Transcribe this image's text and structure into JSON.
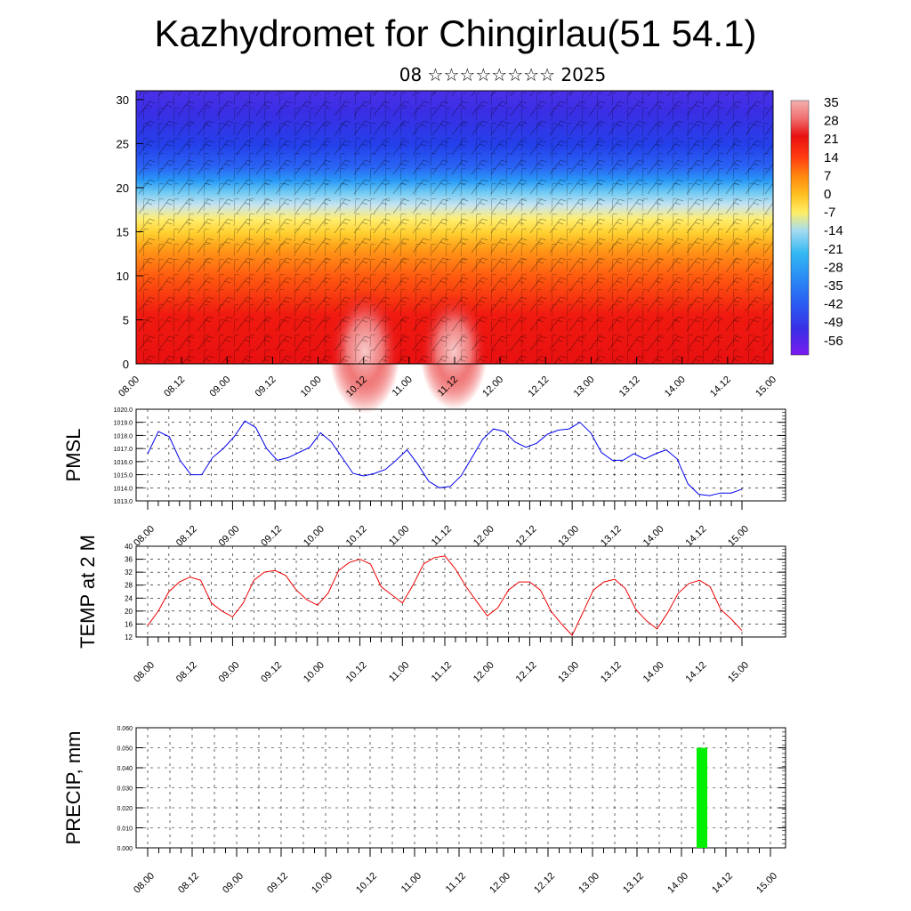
{
  "title": "Kazhydromet for Chingirlau(51 54.1)",
  "subtitle": "08 ☆☆☆☆☆☆☆☆ 2025",
  "colors": {
    "pmsl_line": "#0000ee",
    "temp_line": "#ee0000",
    "precip_bar": "#00ee00",
    "colorbar": [
      "#7a1cf0",
      "#3b2ee6",
      "#2a5cf2",
      "#2a8af5",
      "#33b8f2",
      "#a6dcf0",
      "#ffee66",
      "#ffc020",
      "#ff8a10",
      "#ff3a10",
      "#e81010",
      "#ff3030",
      "#f08080",
      "#f5b0b0"
    ]
  },
  "chart_data": [
    {
      "type": "heatmap",
      "name": "cross-section",
      "x_ticks": [
        "08.00",
        "08.12",
        "09.00",
        "09.12",
        "10.00",
        "10.12",
        "11.00",
        "11.12",
        "12.00",
        "12.12",
        "13.00",
        "13.12",
        "14.00",
        "14.12",
        "15.00"
      ],
      "y_ticks": [
        "0",
        "5",
        "10",
        "15",
        "20",
        "25",
        "30"
      ],
      "ylim": [
        0,
        31
      ],
      "colorbar_labels": [
        "35",
        "28",
        "21",
        "14",
        "7",
        "0",
        "-7",
        "-14",
        "-21",
        "-28",
        "-35",
        "-42",
        "-49",
        "-56"
      ]
    },
    {
      "type": "line",
      "ylabel": "PMSL",
      "ylim": [
        1013.0,
        1020.0
      ],
      "y_ticks": [
        "1013.0",
        "1014.0",
        "1015.0",
        "1016.0",
        "1017.0",
        "1018.0",
        "1019.0",
        "1020.0"
      ],
      "x_ticks": [
        "08.00",
        "08.12",
        "09.00",
        "09.12",
        "10.00",
        "10.12",
        "11.00",
        "11.12",
        "12.00",
        "12.12",
        "13.00",
        "13.12",
        "14.00",
        "14.12",
        "15.00"
      ],
      "values": [
        1016.6,
        1018.3,
        1017.9,
        1016.1,
        1015.0,
        1015.0,
        1016.3,
        1017.0,
        1017.9,
        1019.1,
        1018.6,
        1017.0,
        1016.1,
        1016.3,
        1016.7,
        1017.1,
        1018.2,
        1017.5,
        1016.3,
        1015.1,
        1014.9,
        1015.1,
        1015.4,
        1016.1,
        1016.9,
        1015.8,
        1014.5,
        1014.0,
        1014.1,
        1014.9,
        1016.3,
        1017.7,
        1018.5,
        1018.3,
        1017.5,
        1017.1,
        1017.4,
        1018.1,
        1018.4,
        1018.5,
        1019.0,
        1018.2,
        1016.7,
        1016.1,
        1016.1,
        1016.6,
        1016.2,
        1016.6,
        1016.9,
        1016.2,
        1014.3,
        1013.5,
        1013.4,
        1013.6,
        1013.6,
        1013.9
      ]
    },
    {
      "type": "line",
      "ylabel": "TEMP at 2 M",
      "ylim": [
        12,
        40
      ],
      "y_ticks": [
        "12",
        "16",
        "20",
        "24",
        "28",
        "32",
        "36",
        "40"
      ],
      "x_ticks": [
        "08.00",
        "08.12",
        "09.00",
        "09.12",
        "10.00",
        "10.12",
        "11.00",
        "11.12",
        "12.00",
        "12.12",
        "13.00",
        "13.12",
        "14.00",
        "14.12",
        "15.00"
      ],
      "values": [
        15.5,
        20,
        26,
        29,
        30.5,
        29.5,
        22.5,
        20,
        18.2,
        22.5,
        29.5,
        32,
        32.5,
        31,
        26.5,
        23.5,
        21.8,
        25.5,
        32.5,
        35,
        36,
        34.5,
        27.5,
        25,
        22.5,
        28,
        34.5,
        36.5,
        37,
        33,
        27.5,
        23,
        18.5,
        21,
        26.5,
        29,
        29,
        26.5,
        20,
        16,
        12.5,
        19.5,
        26.5,
        29,
        29.8,
        27,
        20.5,
        17,
        14.5,
        19.5,
        25.5,
        28.5,
        29.5,
        27.5,
        20.5,
        17.5,
        14
      ]
    },
    {
      "type": "bar",
      "ylabel": "PRECIP, mm",
      "ylim": [
        0,
        0.06
      ],
      "y_ticks": [
        "0.000",
        "0.010",
        "0.020",
        "0.030",
        "0.040",
        "0.050",
        "0.060"
      ],
      "x_ticks": [
        "08.00",
        "08.12",
        "09.00",
        "09.12",
        "10.00",
        "10.12",
        "11.00",
        "11.12",
        "12.00",
        "12.12",
        "13.00",
        "13.12",
        "14.00",
        "14.12",
        "15.00"
      ],
      "bars": [
        {
          "x": "14.00",
          "value": 0.05
        }
      ]
    }
  ]
}
